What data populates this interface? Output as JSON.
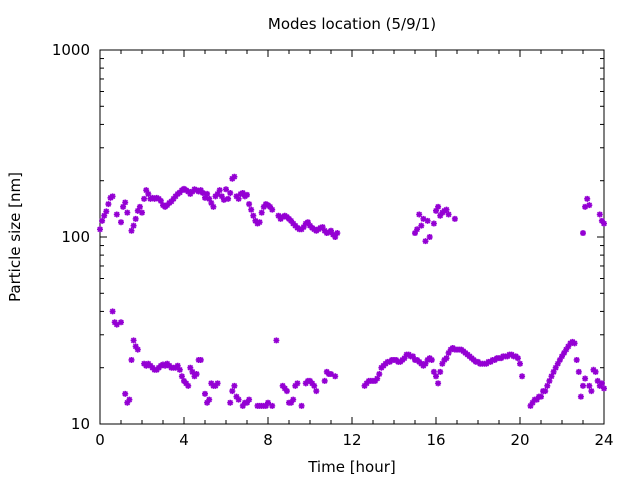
{
  "chart_data": {
    "type": "scatter",
    "title": "Modes location (5/9/1)",
    "xlabel": "Time [hour]",
    "ylabel": "Particle size [nm]",
    "xlim": [
      0,
      24
    ],
    "ylim": [
      10,
      1000
    ],
    "y_scale": "log",
    "x_ticks": [
      0,
      4,
      8,
      12,
      16,
      20,
      24
    ],
    "x_tick_labels": [
      "0",
      "4",
      "8",
      "12",
      "16",
      "20",
      "24"
    ],
    "y_ticks": [
      10,
      100,
      1000
    ],
    "y_tick_labels": [
      "10",
      "100",
      "1000"
    ],
    "grid": false,
    "legend": "none",
    "marker": "star",
    "color": "#9400d3",
    "series": [
      {
        "points": [
          [
            0.0,
            110
          ],
          [
            0.1,
            122
          ],
          [
            0.2,
            130
          ],
          [
            0.3,
            137
          ],
          [
            0.4,
            150
          ],
          [
            0.5,
            162
          ],
          [
            0.6,
            165
          ],
          [
            0.8,
            132
          ],
          [
            1.0,
            120
          ],
          [
            1.1,
            145
          ],
          [
            1.2,
            153
          ],
          [
            1.3,
            135
          ],
          [
            1.5,
            108
          ],
          [
            1.6,
            115
          ],
          [
            1.7,
            125
          ],
          [
            1.8,
            138
          ],
          [
            1.9,
            145
          ],
          [
            2.0,
            135
          ],
          [
            2.1,
            160
          ],
          [
            2.2,
            178
          ],
          [
            2.3,
            170
          ],
          [
            2.4,
            160
          ],
          [
            2.5,
            162
          ],
          [
            2.6,
            160
          ],
          [
            2.7,
            162
          ],
          [
            2.8,
            160
          ],
          [
            2.9,
            156
          ],
          [
            3.0,
            148
          ],
          [
            3.1,
            145
          ],
          [
            3.2,
            148
          ],
          [
            3.3,
            152
          ],
          [
            3.4,
            155
          ],
          [
            3.5,
            160
          ],
          [
            3.6,
            165
          ],
          [
            3.7,
            170
          ],
          [
            3.8,
            173
          ],
          [
            3.9,
            178
          ],
          [
            4.0,
            181
          ],
          [
            4.1,
            178
          ],
          [
            4.2,
            175
          ],
          [
            4.3,
            170
          ],
          [
            4.4,
            175
          ],
          [
            4.5,
            180
          ],
          [
            4.6,
            178
          ],
          [
            4.7,
            175
          ],
          [
            4.8,
            178
          ],
          [
            4.9,
            172
          ],
          [
            5.0,
            162
          ],
          [
            5.1,
            170
          ],
          [
            5.2,
            160
          ],
          [
            5.3,
            152
          ],
          [
            5.4,
            145
          ],
          [
            5.5,
            165
          ],
          [
            5.6,
            170
          ],
          [
            5.7,
            178
          ],
          [
            5.8,
            165
          ],
          [
            5.9,
            158
          ],
          [
            6.0,
            180
          ],
          [
            6.1,
            160
          ],
          [
            6.2,
            172
          ],
          [
            6.3,
            205
          ],
          [
            6.4,
            210
          ],
          [
            6.5,
            165
          ],
          [
            6.6,
            160
          ],
          [
            6.7,
            170
          ],
          [
            6.8,
            172
          ],
          [
            6.9,
            165
          ],
          [
            7.0,
            168
          ],
          [
            7.1,
            150
          ],
          [
            7.2,
            140
          ],
          [
            7.3,
            130
          ],
          [
            7.4,
            122
          ],
          [
            7.5,
            118
          ],
          [
            7.6,
            120
          ],
          [
            7.7,
            135
          ],
          [
            7.8,
            145
          ],
          [
            7.9,
            150
          ],
          [
            8.0,
            148
          ],
          [
            8.1,
            145
          ],
          [
            8.2,
            140
          ],
          [
            8.5,
            130
          ],
          [
            8.6,
            125
          ],
          [
            8.7,
            128
          ],
          [
            8.8,
            130
          ],
          [
            8.9,
            128
          ],
          [
            9.0,
            125
          ],
          [
            9.1,
            122
          ],
          [
            9.2,
            118
          ],
          [
            9.3,
            115
          ],
          [
            9.4,
            112
          ],
          [
            9.5,
            110
          ],
          [
            9.6,
            110
          ],
          [
            9.7,
            113
          ],
          [
            9.8,
            118
          ],
          [
            9.9,
            120
          ],
          [
            10.0,
            115
          ],
          [
            10.1,
            112
          ],
          [
            10.2,
            110
          ],
          [
            10.3,
            108
          ],
          [
            10.4,
            110
          ],
          [
            10.5,
            112
          ],
          [
            10.6,
            113
          ],
          [
            10.7,
            108
          ],
          [
            10.8,
            105
          ],
          [
            10.9,
            106
          ],
          [
            11.0,
            108
          ],
          [
            11.1,
            103
          ],
          [
            11.2,
            100
          ],
          [
            11.3,
            105
          ],
          [
            15.0,
            105
          ],
          [
            15.1,
            110
          ],
          [
            15.2,
            132
          ],
          [
            15.3,
            115
          ],
          [
            15.4,
            125
          ],
          [
            15.5,
            95
          ],
          [
            15.6,
            122
          ],
          [
            15.7,
            100
          ],
          [
            15.9,
            118
          ],
          [
            16.0,
            138
          ],
          [
            16.1,
            145
          ],
          [
            16.2,
            130
          ],
          [
            16.3,
            135
          ],
          [
            16.4,
            138
          ],
          [
            16.5,
            140
          ],
          [
            16.6,
            132
          ],
          [
            16.9,
            125
          ],
          [
            23.0,
            105
          ],
          [
            23.1,
            145
          ],
          [
            23.2,
            160
          ],
          [
            23.3,
            148
          ],
          [
            23.8,
            132
          ],
          [
            23.9,
            122
          ],
          [
            24.0,
            118
          ],
          [
            0.6,
            40
          ],
          [
            0.7,
            35
          ],
          [
            0.8,
            34
          ],
          [
            1.0,
            35
          ],
          [
            1.2,
            14.5
          ],
          [
            1.3,
            13
          ],
          [
            1.4,
            13.5
          ],
          [
            1.5,
            22
          ],
          [
            1.6,
            28
          ],
          [
            1.7,
            26
          ],
          [
            1.8,
            25
          ],
          [
            2.1,
            21
          ],
          [
            2.2,
            20.5
          ],
          [
            2.3,
            21
          ],
          [
            2.4,
            20.5
          ],
          [
            2.5,
            20
          ],
          [
            2.6,
            19.5
          ],
          [
            2.7,
            19.5
          ],
          [
            2.8,
            20
          ],
          [
            2.9,
            20.5
          ],
          [
            3.0,
            20.8
          ],
          [
            3.1,
            20.5
          ],
          [
            3.2,
            21
          ],
          [
            3.3,
            20.5
          ],
          [
            3.4,
            20
          ],
          [
            3.5,
            20
          ],
          [
            3.6,
            20
          ],
          [
            3.7,
            20.5
          ],
          [
            3.8,
            19.5
          ],
          [
            3.9,
            18
          ],
          [
            4.0,
            17
          ],
          [
            4.1,
            16.5
          ],
          [
            4.2,
            16
          ],
          [
            4.3,
            20
          ],
          [
            4.4,
            19
          ],
          [
            4.5,
            18
          ],
          [
            4.6,
            18.5
          ],
          [
            4.7,
            22
          ],
          [
            4.8,
            22
          ],
          [
            5.0,
            14.5
          ],
          [
            5.1,
            13
          ],
          [
            5.2,
            13.5
          ],
          [
            5.3,
            16.5
          ],
          [
            5.4,
            16
          ],
          [
            5.5,
            16
          ],
          [
            5.6,
            16.5
          ],
          [
            6.2,
            13
          ],
          [
            6.3,
            15
          ],
          [
            6.4,
            16
          ],
          [
            6.5,
            14
          ],
          [
            6.6,
            13.5
          ],
          [
            6.8,
            12.5
          ],
          [
            6.9,
            13
          ],
          [
            7.0,
            13
          ],
          [
            7.1,
            13.5
          ],
          [
            7.5,
            12.5
          ],
          [
            7.6,
            12.5
          ],
          [
            7.7,
            12.5
          ],
          [
            7.8,
            12.5
          ],
          [
            7.9,
            12.5
          ],
          [
            8.0,
            13
          ],
          [
            8.2,
            12.5
          ],
          [
            8.4,
            28
          ],
          [
            8.7,
            16
          ],
          [
            8.8,
            15.5
          ],
          [
            8.9,
            15
          ],
          [
            9.0,
            13
          ],
          [
            9.1,
            13
          ],
          [
            9.2,
            13.5
          ],
          [
            9.3,
            16
          ],
          [
            9.4,
            16.5
          ],
          [
            9.6,
            12.5
          ],
          [
            9.8,
            16.5
          ],
          [
            9.9,
            17
          ],
          [
            10.0,
            17
          ],
          [
            10.1,
            16.5
          ],
          [
            10.2,
            16
          ],
          [
            10.3,
            15
          ],
          [
            10.7,
            17
          ],
          [
            10.8,
            19
          ],
          [
            10.9,
            18.5
          ],
          [
            11.0,
            18.5
          ],
          [
            11.2,
            18
          ],
          [
            12.6,
            16
          ],
          [
            12.7,
            16.5
          ],
          [
            12.8,
            17
          ],
          [
            12.9,
            17
          ],
          [
            13.0,
            17
          ],
          [
            13.1,
            17
          ],
          [
            13.2,
            17.5
          ],
          [
            13.3,
            18.5
          ],
          [
            13.4,
            20
          ],
          [
            13.5,
            20.5
          ],
          [
            13.6,
            21
          ],
          [
            13.7,
            21.5
          ],
          [
            13.8,
            21.5
          ],
          [
            13.9,
            22
          ],
          [
            14.0,
            22
          ],
          [
            14.1,
            22
          ],
          [
            14.2,
            21.5
          ],
          [
            14.3,
            21.5
          ],
          [
            14.4,
            22
          ],
          [
            14.5,
            22.5
          ],
          [
            14.6,
            23.5
          ],
          [
            14.7,
            23.5
          ],
          [
            14.8,
            23
          ],
          [
            14.9,
            23
          ],
          [
            15.0,
            22
          ],
          [
            15.1,
            22
          ],
          [
            15.2,
            21.5
          ],
          [
            15.3,
            21
          ],
          [
            15.4,
            20.5
          ],
          [
            15.5,
            21
          ],
          [
            15.6,
            22
          ],
          [
            15.7,
            22.5
          ],
          [
            15.8,
            22
          ],
          [
            15.9,
            19
          ],
          [
            16.0,
            18
          ],
          [
            16.1,
            16.5
          ],
          [
            16.2,
            19
          ],
          [
            16.3,
            21
          ],
          [
            16.4,
            22
          ],
          [
            16.5,
            22.5
          ],
          [
            16.6,
            24
          ],
          [
            16.7,
            25
          ],
          [
            16.8,
            25.5
          ],
          [
            16.9,
            25
          ],
          [
            17.0,
            25
          ],
          [
            17.1,
            25
          ],
          [
            17.2,
            25
          ],
          [
            17.3,
            24.5
          ],
          [
            17.4,
            24
          ],
          [
            17.5,
            23.5
          ],
          [
            17.6,
            23
          ],
          [
            17.7,
            22.5
          ],
          [
            17.8,
            22
          ],
          [
            17.9,
            21.5
          ],
          [
            18.0,
            21.5
          ],
          [
            18.1,
            21
          ],
          [
            18.2,
            21
          ],
          [
            18.3,
            21
          ],
          [
            18.4,
            21
          ],
          [
            18.5,
            21.5
          ],
          [
            18.6,
            21.5
          ],
          [
            18.7,
            22
          ],
          [
            18.8,
            22
          ],
          [
            18.9,
            22.5
          ],
          [
            19.0,
            22.5
          ],
          [
            19.1,
            22.5
          ],
          [
            19.2,
            23
          ],
          [
            19.3,
            23
          ],
          [
            19.4,
            23
          ],
          [
            19.5,
            23.5
          ],
          [
            19.6,
            23.5
          ],
          [
            19.7,
            23
          ],
          [
            19.8,
            23
          ],
          [
            19.9,
            22.5
          ],
          [
            20.0,
            21
          ],
          [
            20.1,
            18
          ],
          [
            20.5,
            12.5
          ],
          [
            20.6,
            13
          ],
          [
            20.7,
            13.5
          ],
          [
            20.8,
            13.5
          ],
          [
            20.9,
            14
          ],
          [
            21.0,
            14
          ],
          [
            21.1,
            15
          ],
          [
            21.2,
            15
          ],
          [
            21.3,
            16
          ],
          [
            21.4,
            17
          ],
          [
            21.5,
            18
          ],
          [
            21.6,
            19
          ],
          [
            21.7,
            20
          ],
          [
            21.8,
            21
          ],
          [
            21.9,
            22
          ],
          [
            22.0,
            23
          ],
          [
            22.1,
            24
          ],
          [
            22.2,
            25
          ],
          [
            22.3,
            26
          ],
          [
            22.4,
            27
          ],
          [
            22.5,
            27.5
          ],
          [
            22.6,
            27
          ],
          [
            22.7,
            22
          ],
          [
            22.8,
            19
          ],
          [
            22.9,
            14
          ],
          [
            23.0,
            16
          ],
          [
            23.1,
            17.5
          ],
          [
            23.3,
            16
          ],
          [
            23.4,
            15
          ],
          [
            23.5,
            19.5
          ],
          [
            23.6,
            19
          ],
          [
            23.7,
            17
          ],
          [
            23.8,
            16
          ],
          [
            23.9,
            16.5
          ],
          [
            24.0,
            15.5
          ]
        ]
      }
    ]
  }
}
